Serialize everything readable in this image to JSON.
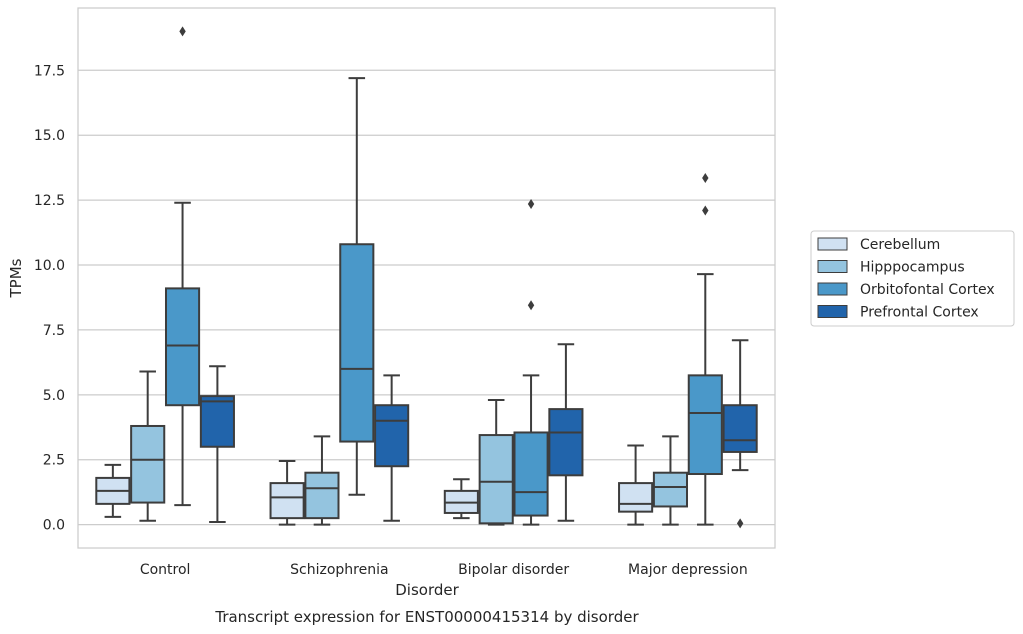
{
  "chart_data": {
    "type": "box",
    "xlabel": "Disorder",
    "ylabel": "TPMs",
    "caption": "Transcript expression for ENST00000415314 by disorder",
    "ylim": [
      -0.9,
      19.9
    ],
    "yticks": [
      0.0,
      2.5,
      5.0,
      7.5,
      10.0,
      12.5,
      15.0,
      17.5
    ],
    "ytick_labels": [
      "0.0",
      "2.5",
      "5.0",
      "7.5",
      "10.0",
      "12.5",
      "15.0",
      "17.5"
    ],
    "grid": "horizontal",
    "legend_position": "right",
    "categories": [
      "Control",
      "Schizophrenia",
      "Bipolar disorder",
      "Major depression"
    ],
    "series": [
      {
        "name": "Cerebellum",
        "color": "#d0e1f2",
        "boxes": [
          {
            "whisker_low": 0.3,
            "q1": 0.8,
            "median": 1.3,
            "q3": 1.8,
            "whisker_high": 2.3,
            "outliers": []
          },
          {
            "whisker_low": 0.0,
            "q1": 0.25,
            "median": 1.05,
            "q3": 1.6,
            "whisker_high": 2.45,
            "outliers": []
          },
          {
            "whisker_low": 0.25,
            "q1": 0.45,
            "median": 0.85,
            "q3": 1.3,
            "whisker_high": 1.75,
            "outliers": []
          },
          {
            "whisker_low": 0.0,
            "q1": 0.5,
            "median": 0.8,
            "q3": 1.6,
            "whisker_high": 3.05,
            "outliers": []
          }
        ]
      },
      {
        "name": "Hipppocampus",
        "color": "#94c4df",
        "boxes": [
          {
            "whisker_low": 0.15,
            "q1": 0.85,
            "median": 2.5,
            "q3": 3.8,
            "whisker_high": 5.9,
            "outliers": []
          },
          {
            "whisker_low": 0.0,
            "q1": 0.25,
            "median": 1.4,
            "q3": 2.0,
            "whisker_high": 3.4,
            "outliers": []
          },
          {
            "whisker_low": 0.0,
            "q1": 0.05,
            "median": 1.65,
            "q3": 3.45,
            "whisker_high": 4.8,
            "outliers": []
          },
          {
            "whisker_low": 0.0,
            "q1": 0.7,
            "median": 1.45,
            "q3": 2.0,
            "whisker_high": 3.4,
            "outliers": []
          }
        ]
      },
      {
        "name": "Orbitofontal Cortex",
        "color": "#4a98c9",
        "boxes": [
          {
            "whisker_low": 0.75,
            "q1": 4.6,
            "median": 6.9,
            "q3": 9.1,
            "whisker_high": 12.4,
            "outliers": [
              19.0
            ]
          },
          {
            "whisker_low": 1.15,
            "q1": 3.2,
            "median": 6.0,
            "q3": 10.8,
            "whisker_high": 17.2,
            "outliers": []
          },
          {
            "whisker_low": 0.0,
            "q1": 0.35,
            "median": 1.25,
            "q3": 3.55,
            "whisker_high": 5.75,
            "outliers": [
              8.45,
              12.35
            ]
          },
          {
            "whisker_low": 0.0,
            "q1": 1.95,
            "median": 4.3,
            "q3": 5.75,
            "whisker_high": 9.65,
            "outliers": [
              12.1,
              13.35
            ]
          }
        ]
      },
      {
        "name": "Prefrontal Cortex",
        "color": "#2164ab",
        "boxes": [
          {
            "whisker_low": 0.1,
            "q1": 3.0,
            "median": 4.75,
            "q3": 4.95,
            "whisker_high": 6.1,
            "outliers": []
          },
          {
            "whisker_low": 0.15,
            "q1": 2.25,
            "median": 4.0,
            "q3": 4.6,
            "whisker_high": 5.75,
            "outliers": []
          },
          {
            "whisker_low": 0.15,
            "q1": 1.9,
            "median": 3.55,
            "q3": 4.45,
            "whisker_high": 6.95,
            "outliers": []
          },
          {
            "whisker_low": 2.1,
            "q1": 2.8,
            "median": 3.25,
            "q3": 4.6,
            "whisker_high": 7.1,
            "outliers": [
              0.05
            ]
          }
        ]
      }
    ]
  }
}
